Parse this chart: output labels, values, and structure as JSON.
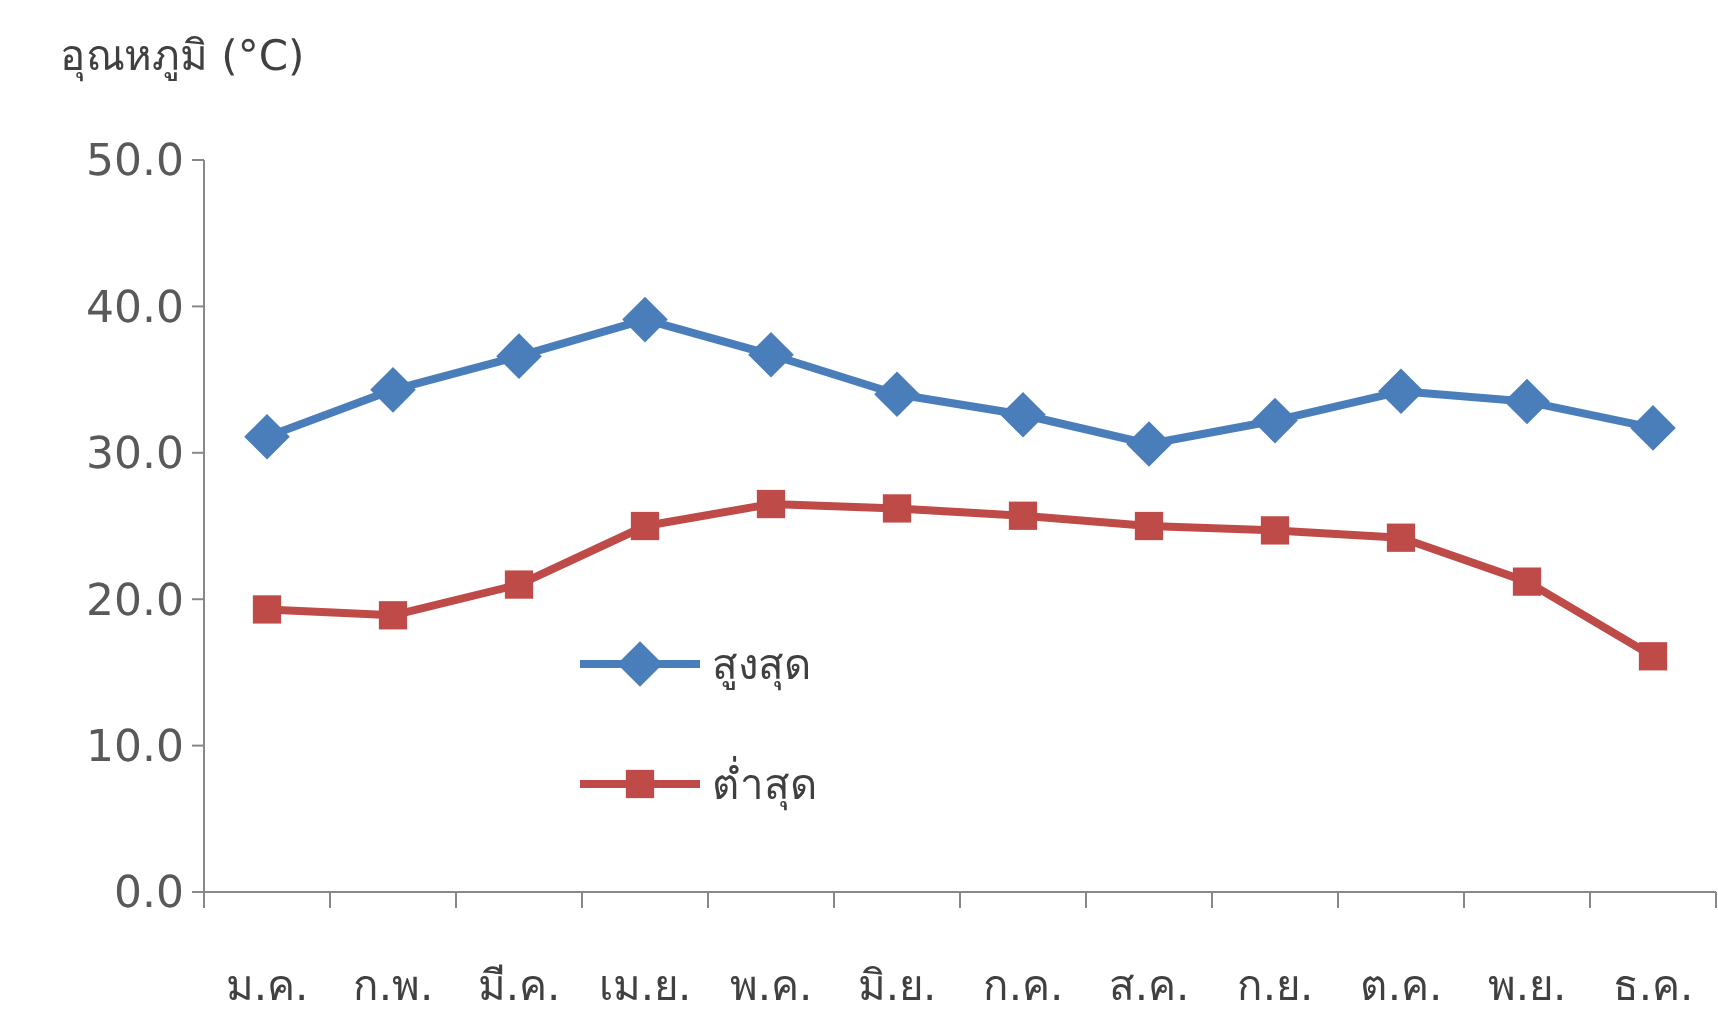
{
  "chart_data": {
    "type": "line",
    "ylabel": "อุณหภูมิ (°C)",
    "categories": [
      "ม.ค.",
      "ก.พ.",
      "มี.ค.",
      "เม.ย.",
      "พ.ค.",
      "มิ.ย.",
      "ก.ค.",
      "ส.ค.",
      "ก.ย.",
      "ต.ค.",
      "พ.ย.",
      "ธ.ค."
    ],
    "series": [
      {
        "name": "สูงสุด",
        "color": "#4a7ebb",
        "marker": "diamond",
        "values": [
          31.1,
          34.3,
          36.6,
          39.1,
          36.7,
          34.0,
          32.6,
          30.6,
          32.2,
          34.2,
          33.5,
          31.7
        ]
      },
      {
        "name": "ต่ำสุด",
        "color": "#be4b48",
        "marker": "square",
        "values": [
          19.3,
          18.9,
          21.0,
          25.0,
          26.5,
          26.2,
          25.7,
          25.0,
          24.7,
          24.2,
          21.2,
          16.1
        ]
      }
    ],
    "ylim": [
      0,
      50
    ],
    "yticks": [
      {
        "value": 0,
        "label": "0.0"
      },
      {
        "value": 10,
        "label": "10.0"
      },
      {
        "value": 20,
        "label": "20.0"
      },
      {
        "value": 30,
        "label": "30.0"
      },
      {
        "value": 40,
        "label": "40.0"
      },
      {
        "value": 50,
        "label": "50.0"
      }
    ],
    "grid": false,
    "legend": "bottom left",
    "line_style": "solid"
  }
}
